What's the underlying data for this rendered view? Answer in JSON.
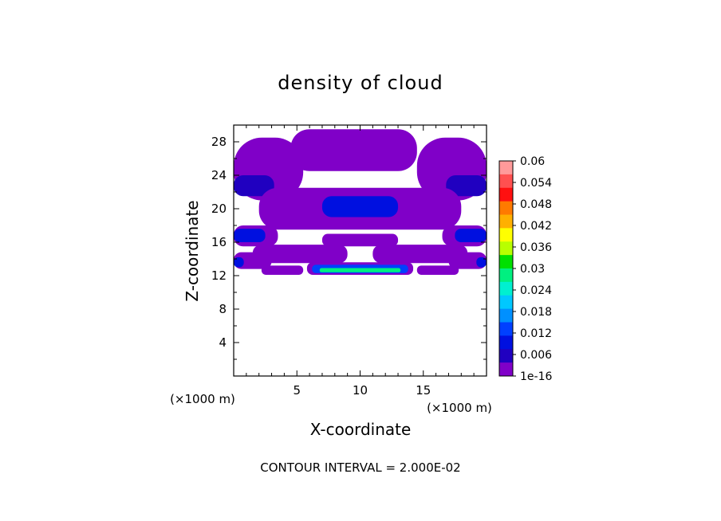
{
  "chart_data": {
    "type": "heatmap",
    "title": "density of cloud",
    "xlabel": "X-coordinate",
    "ylabel": "Z-coordinate",
    "x_unit": "(×1000 m)",
    "z_unit": "(×1000 m)",
    "xlim": [
      0,
      20
    ],
    "ylim": [
      0,
      30
    ],
    "x_ticks": [
      5,
      10,
      15
    ],
    "y_ticks": [
      4,
      8,
      12,
      16,
      20,
      24,
      28
    ],
    "contour_interval_text": "CONTOUR INTERVAL = 2.000E-02",
    "colorbar": {
      "labels": [
        "0.06",
        "0.054",
        "0.048",
        "0.042",
        "0.036",
        "0.03",
        "0.024",
        "0.018",
        "0.012",
        "0.006",
        "1e-16"
      ],
      "colors": [
        "#ff9a9a",
        "#ff5050",
        "#ff1010",
        "#ff7a00",
        "#ffb000",
        "#ffff00",
        "#b8ff00",
        "#00e000",
        "#00f080",
        "#00f0d0",
        "#00c8ff",
        "#0090ff",
        "#0040ff",
        "#0010e0",
        "#2000c0",
        "#8000c8"
      ]
    },
    "regions": [
      {
        "level": "1e-16",
        "x": [
          4.5,
          14.5
        ],
        "z": [
          24.5,
          29.5
        ]
      },
      {
        "level": "1e-16",
        "x": [
          0,
          5.5
        ],
        "z": [
          21,
          28.5
        ]
      },
      {
        "level": "1e-16",
        "x": [
          14.5,
          20
        ],
        "z": [
          21,
          28.5
        ]
      },
      {
        "level": "0.004",
        "x": [
          0,
          3.2
        ],
        "z": [
          21.5,
          24
        ]
      },
      {
        "level": "0.004",
        "x": [
          16.8,
          20
        ],
        "z": [
          21.5,
          24
        ]
      },
      {
        "level": "1e-16",
        "x": [
          2,
          18
        ],
        "z": [
          17.5,
          22.5
        ]
      },
      {
        "level": "0.006",
        "x": [
          7,
          13
        ],
        "z": [
          19,
          21.5
        ]
      },
      {
        "level": "1e-16",
        "x": [
          0,
          3.5
        ],
        "z": [
          15.5,
          18
        ]
      },
      {
        "level": "1e-16",
        "x": [
          16.5,
          20
        ],
        "z": [
          15.5,
          18
        ]
      },
      {
        "level": "0.006",
        "x": [
          0,
          2.5
        ],
        "z": [
          16,
          17.6
        ]
      },
      {
        "level": "0.006",
        "x": [
          17.5,
          20
        ],
        "z": [
          16,
          17.6
        ]
      },
      {
        "level": "1e-16",
        "x": [
          7,
          13
        ],
        "z": [
          15.5,
          17
        ]
      },
      {
        "level": "1e-16",
        "x": [
          1.5,
          9
        ],
        "z": [
          13.5,
          15.7
        ]
      },
      {
        "level": "1e-16",
        "x": [
          11,
          18.5
        ],
        "z": [
          13.5,
          15.7
        ]
      },
      {
        "level": "1e-16",
        "x": [
          0,
          3
        ],
        "z": [
          12.8,
          14.8
        ]
      },
      {
        "level": "1e-16",
        "x": [
          17,
          20
        ],
        "z": [
          12.8,
          14.8
        ]
      },
      {
        "level": "0.008",
        "x": [
          0,
          0.8
        ],
        "z": [
          13,
          14.2
        ]
      },
      {
        "level": "0.008",
        "x": [
          19.2,
          20
        ],
        "z": [
          13,
          14.2
        ]
      },
      {
        "level": "1e-16",
        "x": [
          2.2,
          5.5
        ],
        "z": [
          12.1,
          13.2
        ]
      },
      {
        "level": "1e-16",
        "x": [
          14.5,
          17.8
        ],
        "z": [
          12.1,
          13.2
        ]
      },
      {
        "level": "1e-16",
        "x": [
          5.8,
          14.2
        ],
        "z": [
          12.1,
          13.6
        ]
      },
      {
        "level": "0.01",
        "x": [
          6.2,
          13.8
        ],
        "z": [
          12.3,
          13.3
        ]
      },
      {
        "level": "0.028",
        "x": [
          6.8,
          13.2
        ],
        "z": [
          12.4,
          12.9
        ]
      },
      {
        "level": "0.012",
        "x": [
          8.5,
          11.5
        ],
        "z": [
          13,
          13.3
        ]
      }
    ]
  }
}
